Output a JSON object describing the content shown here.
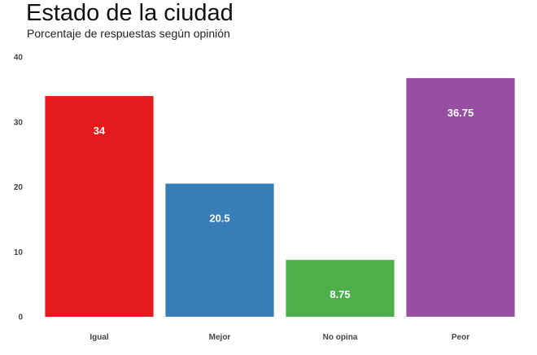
{
  "chart_data": {
    "type": "bar",
    "title": "Estado de la ciudad",
    "subtitle": "Porcentaje de respuestas según opinión",
    "xlabel": "",
    "ylabel": "",
    "categories": [
      "Igual",
      "Mejor",
      "No opina",
      "Peor"
    ],
    "values": [
      34,
      20.5,
      8.75,
      36.75
    ],
    "data_labels": [
      "34",
      "20.5",
      "8.75",
      "36.75"
    ],
    "colors": [
      "#E41A1C",
      "#377EB8",
      "#4DAF4A",
      "#984EA3"
    ],
    "ylim": [
      0,
      40
    ],
    "yticks": [
      0,
      10,
      20,
      30,
      40
    ],
    "grid": false,
    "legend": "none"
  }
}
